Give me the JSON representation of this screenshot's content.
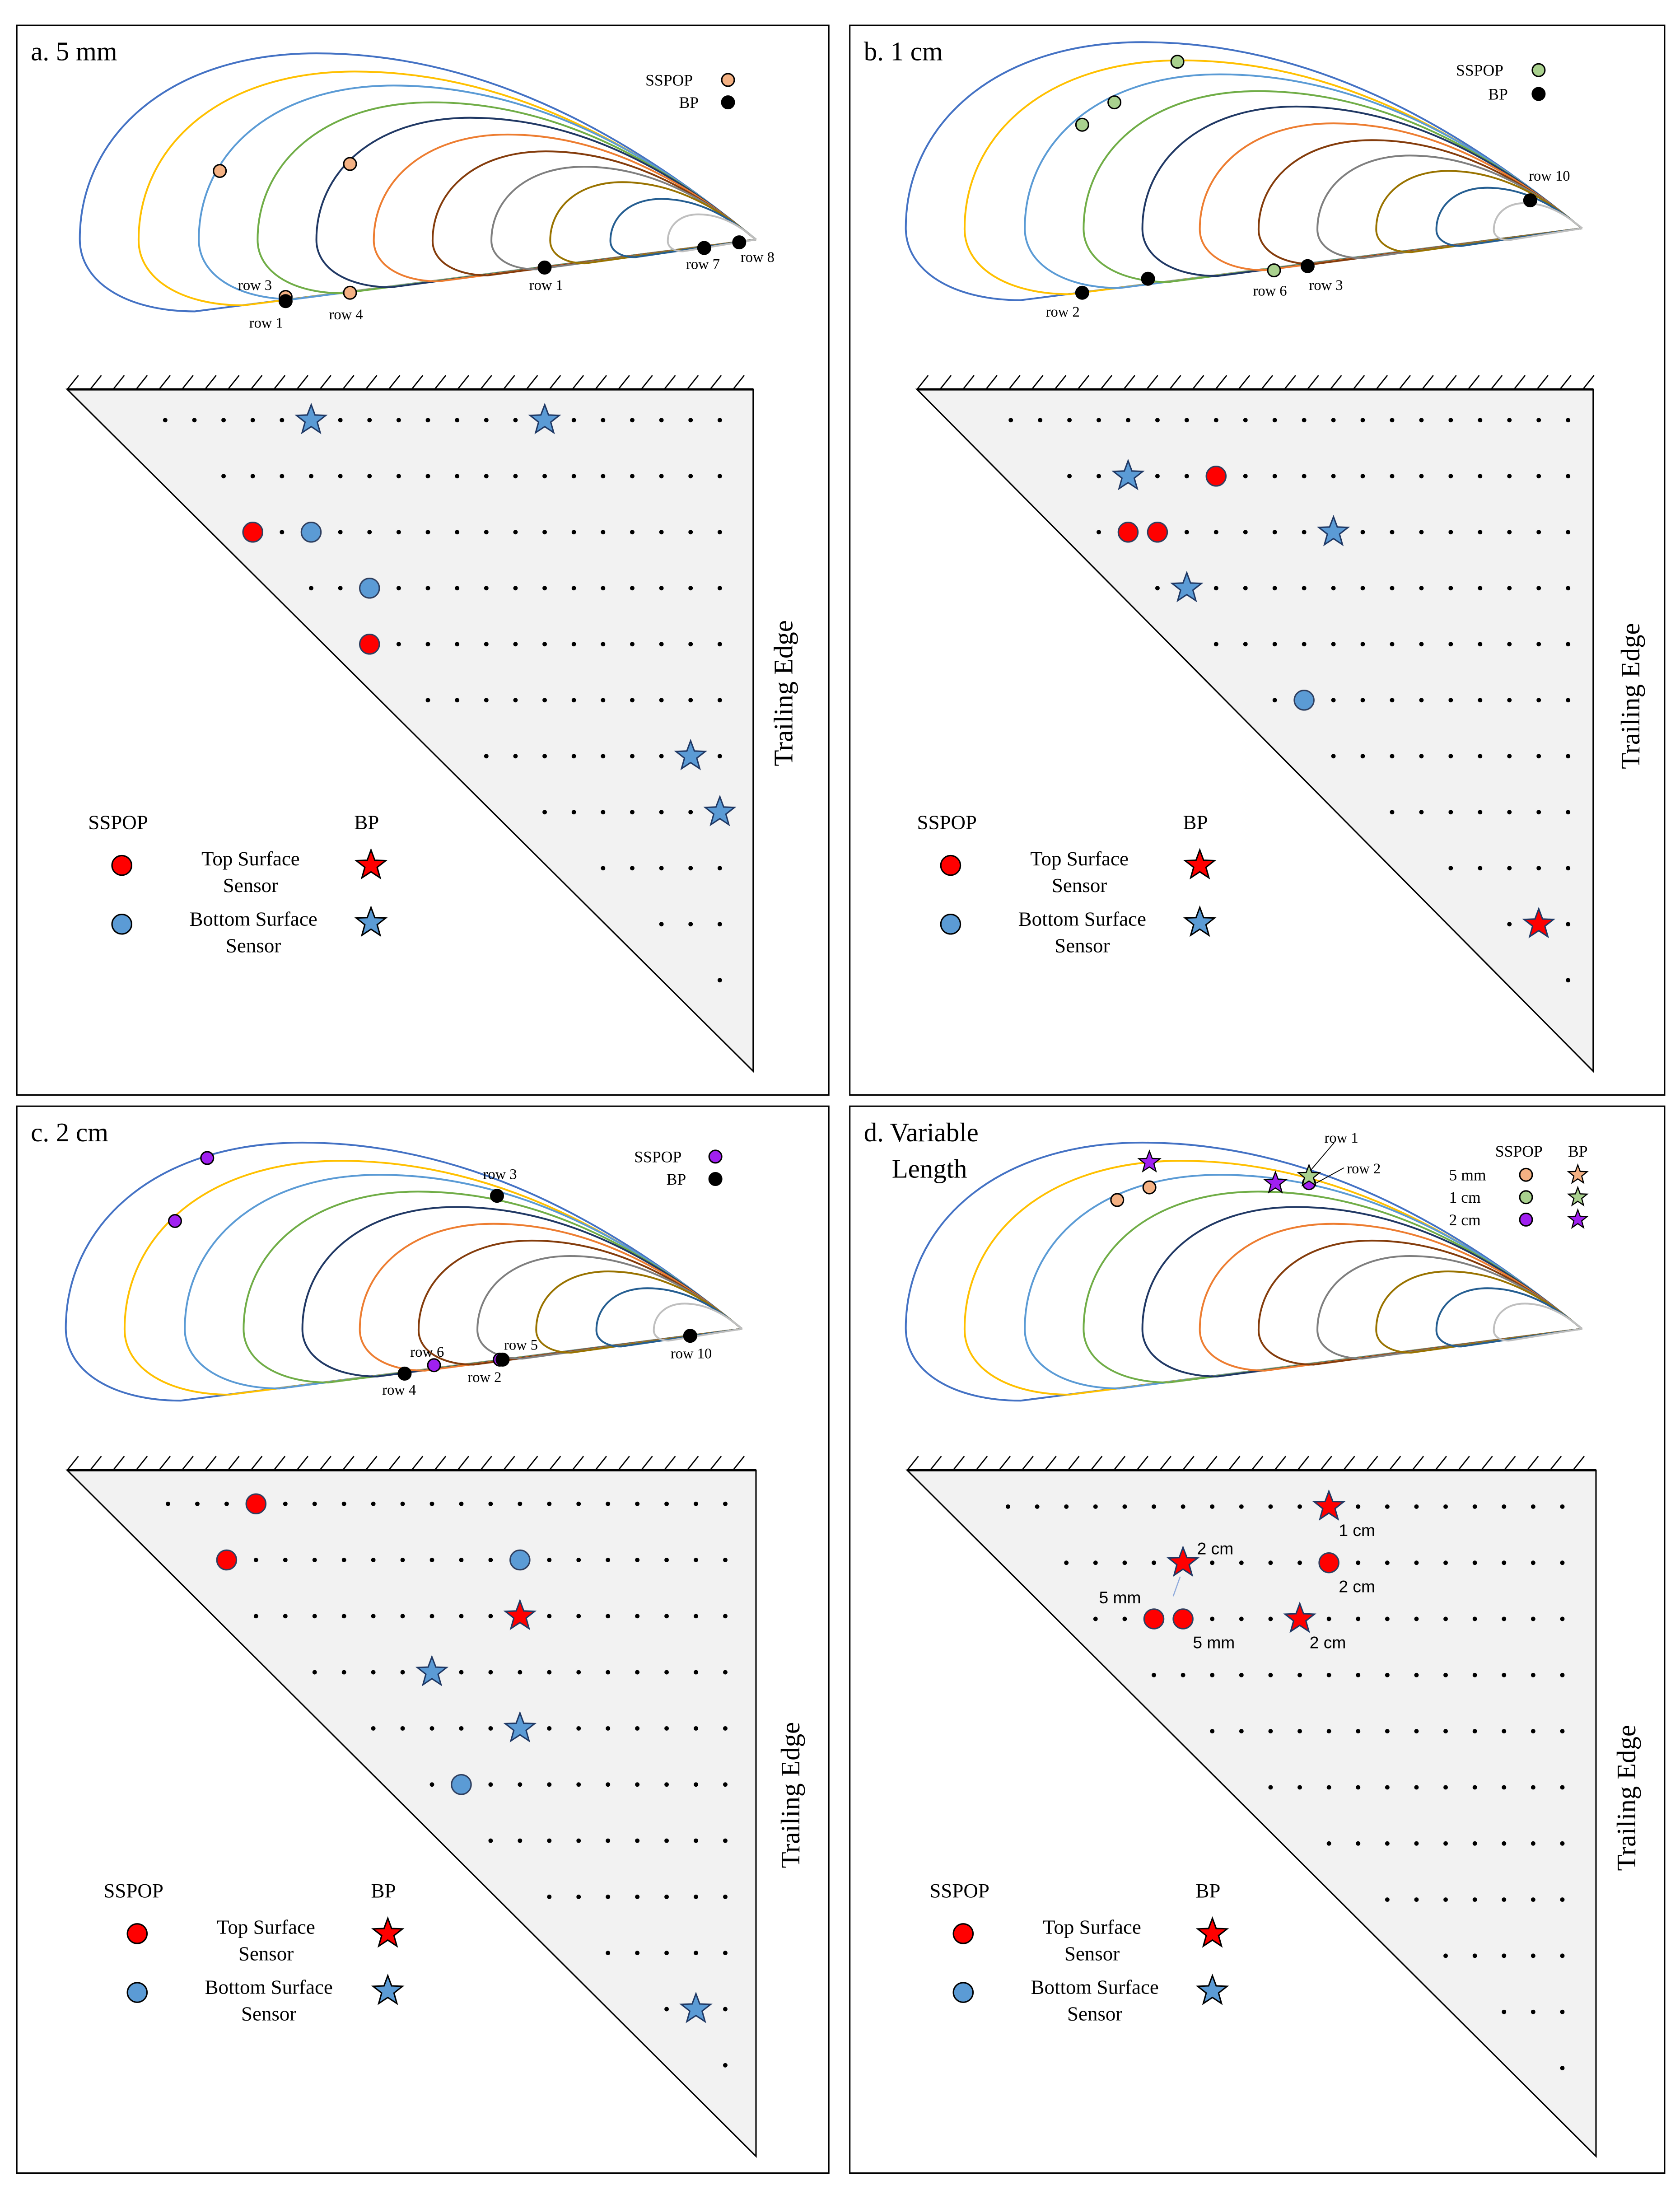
{
  "colors": {
    "top_surface": "#FF0000",
    "bottom_surface": "#5B9BD5",
    "sspop_5mm": "#F4B183",
    "sspop_1cm": "#A9D18E",
    "sspop_2cm": "#A020F0",
    "bp": "#000000",
    "triangle_fill": "#F2F2F2",
    "contours": [
      "#4472C4",
      "#FFC000",
      "#5B9BD5",
      "#70AD47",
      "#203864",
      "#ED7D31",
      "#843C0C",
      "#7F7F7F",
      "#997300",
      "#255E91",
      "#BFBFBF"
    ]
  },
  "panels": [
    {
      "id": "a",
      "title": [
        "a. 5 mm"
      ],
      "airfoil": {
        "legend": [
          {
            "label": "SSPOP",
            "color": "#F4B183"
          },
          {
            "label": "BP",
            "color": "#000000"
          }
        ],
        "row_labels": [
          "row 3",
          "row 1",
          "row 4",
          "row 1",
          "row 7",
          "row 8"
        ]
      },
      "grid_sensors": [
        {
          "row": 0,
          "col": 5,
          "kind": "star",
          "surface": "bottom"
        },
        {
          "row": 0,
          "col": 13,
          "kind": "star",
          "surface": "bottom"
        },
        {
          "row": 2,
          "col": 3,
          "kind": "circle",
          "surface": "top"
        },
        {
          "row": 2,
          "col": 5,
          "kind": "circle",
          "surface": "bottom"
        },
        {
          "row": 3,
          "col": 7,
          "kind": "circle",
          "surface": "bottom"
        },
        {
          "row": 4,
          "col": 7,
          "kind": "circle",
          "surface": "top"
        },
        {
          "row": 6,
          "col": 18,
          "kind": "star",
          "surface": "bottom"
        },
        {
          "row": 7,
          "col": 19,
          "kind": "star",
          "surface": "bottom"
        }
      ],
      "legend": {
        "sspop": "SSPOP",
        "bp": "BP",
        "top": [
          "Top Surface",
          "Sensor"
        ],
        "bottom": [
          "Bottom Surface",
          "Sensor"
        ]
      },
      "trailing_edge": "Trailing Edge"
    },
    {
      "id": "b",
      "title": [
        "b. 1 cm"
      ],
      "airfoil": {
        "legend": [
          {
            "label": "SSPOP",
            "color": "#A9D18E"
          },
          {
            "label": "BP",
            "color": "#000000"
          }
        ],
        "row_labels": [
          "row 2",
          "row 6",
          "row 3",
          "row 10"
        ]
      },
      "grid_sensors": [
        {
          "row": 1,
          "col": 4,
          "kind": "star",
          "surface": "bottom"
        },
        {
          "row": 1,
          "col": 7,
          "kind": "circle",
          "surface": "top"
        },
        {
          "row": 2,
          "col": 4,
          "kind": "circle",
          "surface": "top"
        },
        {
          "row": 2,
          "col": 5,
          "kind": "circle",
          "surface": "top"
        },
        {
          "row": 2,
          "col": 11,
          "kind": "star",
          "surface": "bottom"
        },
        {
          "row": 3,
          "col": 6,
          "kind": "star",
          "surface": "bottom"
        },
        {
          "row": 5,
          "col": 10,
          "kind": "circle",
          "surface": "bottom"
        },
        {
          "row": 9,
          "col": 18,
          "kind": "star",
          "surface": "top"
        }
      ],
      "legend": {
        "sspop": "SSPOP",
        "bp": "BP",
        "top": [
          "Top Surface",
          "Sensor"
        ],
        "bottom": [
          "Bottom Surface",
          "Sensor"
        ]
      },
      "trailing_edge": "Trailing Edge"
    },
    {
      "id": "c",
      "title": [
        "c. 2 cm"
      ],
      "airfoil": {
        "legend": [
          {
            "label": "SSPOP",
            "color": "#A020F0"
          },
          {
            "label": "BP",
            "color": "#000000"
          }
        ],
        "row_labels": [
          "row 3",
          "row 6",
          "row 5",
          "row 4",
          "row 2",
          "row 10"
        ]
      },
      "grid_sensors": [
        {
          "row": 0,
          "col": 3,
          "kind": "circle",
          "surface": "top"
        },
        {
          "row": 1,
          "col": 2,
          "kind": "circle",
          "surface": "top"
        },
        {
          "row": 1,
          "col": 12,
          "kind": "circle",
          "surface": "bottom"
        },
        {
          "row": 2,
          "col": 12,
          "kind": "star",
          "surface": "top"
        },
        {
          "row": 3,
          "col": 9,
          "kind": "star",
          "surface": "bottom"
        },
        {
          "row": 4,
          "col": 12,
          "kind": "star",
          "surface": "bottom"
        },
        {
          "row": 5,
          "col": 10,
          "kind": "circle",
          "surface": "bottom"
        },
        {
          "row": 9,
          "col": 18,
          "kind": "star",
          "surface": "bottom"
        }
      ],
      "legend": {
        "sspop": "SSPOP",
        "bp": "BP",
        "top": [
          "Top Surface",
          "Sensor"
        ],
        "bottom": [
          "Bottom Surface",
          "Sensor"
        ]
      },
      "trailing_edge": "Trailing Edge"
    },
    {
      "id": "d",
      "title": [
        "d. Variable",
        "Length"
      ],
      "airfoil": {
        "legend_header": [
          "SSPOP",
          "BP"
        ],
        "legend_rows": [
          {
            "label": "5 mm",
            "color": "#F4B183"
          },
          {
            "label": "1 cm",
            "color": "#A9D18E"
          },
          {
            "label": "2 cm",
            "color": "#A020F0"
          }
        ],
        "row_labels": [
          "row 1",
          "row 2"
        ]
      },
      "grid_sensors": [
        {
          "row": 0,
          "col": 11,
          "kind": "star",
          "surface": "top",
          "label": "1 cm"
        },
        {
          "row": 1,
          "col": 6,
          "kind": "star",
          "surface": "top",
          "label": "2 cm"
        },
        {
          "row": 1,
          "col": 11,
          "kind": "circle",
          "surface": "top",
          "label": "2 cm"
        },
        {
          "row": 2,
          "col": 5,
          "kind": "circle",
          "surface": "top"
        },
        {
          "row": 2,
          "col": 6,
          "kind": "circle",
          "surface": "top",
          "label": "5 mm"
        },
        {
          "row": 2,
          "col": 10,
          "kind": "star",
          "surface": "top",
          "label": "2 cm"
        }
      ],
      "grid_extra_label": "5 mm",
      "legend": {
        "sspop": "SSPOP",
        "bp": "BP",
        "top": [
          "Top Surface",
          "Sensor"
        ],
        "bottom": [
          "Bottom Surface",
          "Sensor"
        ]
      },
      "trailing_edge": "Trailing Edge"
    }
  ]
}
